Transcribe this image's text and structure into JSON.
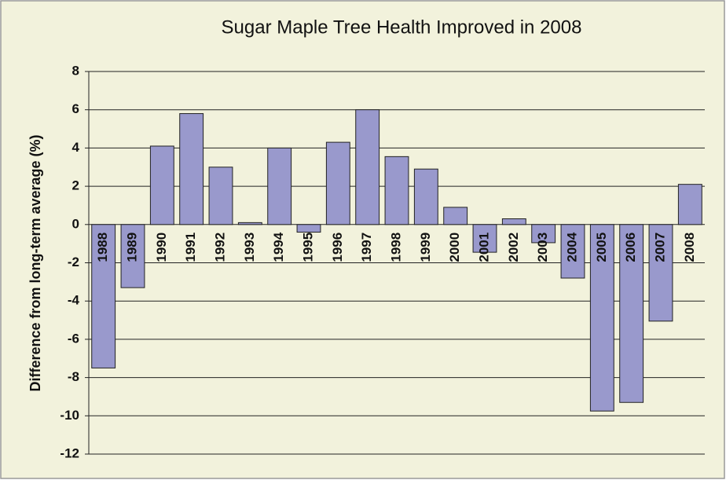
{
  "chart_data": {
    "type": "bar",
    "title": "Sugar Maple Tree Health Improved in 2008",
    "ylabel": "Difference from long-term average (%)",
    "categories": [
      "1988",
      "1989",
      "1990",
      "1991",
      "1992",
      "1993",
      "1994",
      "1995",
      "1996",
      "1997",
      "1998",
      "1999",
      "2000",
      "2001",
      "2002",
      "2003",
      "2004",
      "2005",
      "2006",
      "2007",
      "2008"
    ],
    "values": [
      -7.5,
      -3.3,
      4.1,
      5.8,
      3.0,
      0.1,
      4.0,
      -0.4,
      4.3,
      6.0,
      3.55,
      2.9,
      0.9,
      -1.45,
      0.3,
      -0.95,
      -2.8,
      -9.75,
      -9.3,
      -5.05,
      2.1
    ],
    "color": "#9999cc",
    "ylim": [
      -12,
      8
    ],
    "yticks": [
      -12,
      -10,
      -8,
      -6,
      -4,
      -2,
      0,
      2,
      4,
      6,
      8
    ],
    "grid": true
  }
}
